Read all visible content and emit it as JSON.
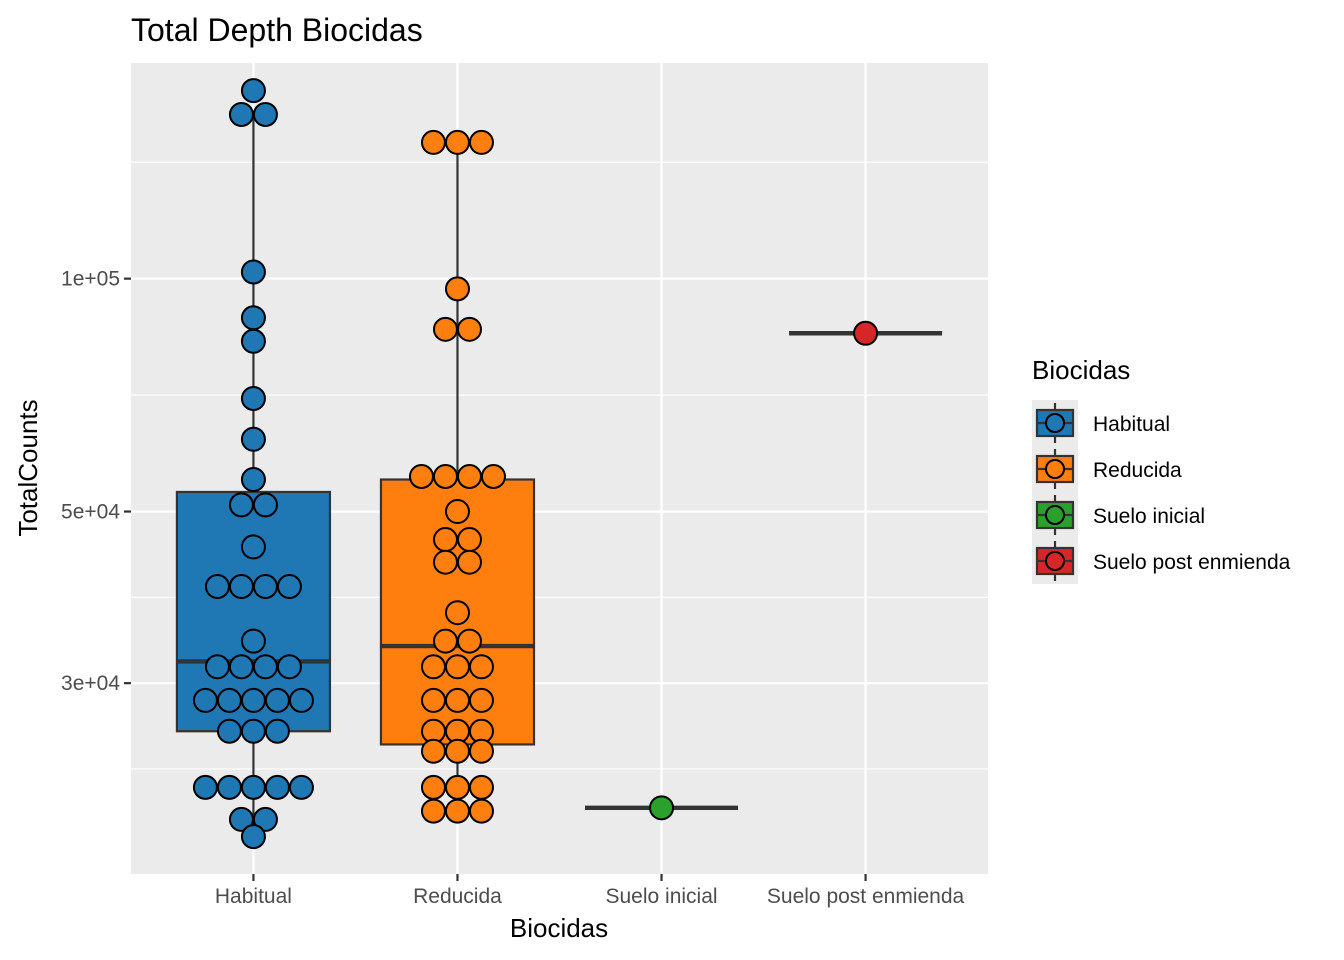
{
  "chart_data": {
    "type": "box",
    "title": "Total Depth Biocidas",
    "xlabel": "Biocidas",
    "ylabel": "TotalCounts",
    "y_scale": "log10",
    "ylim": [
      17000,
      190000
    ],
    "y_ticks": [
      30000,
      50000,
      100000
    ],
    "y_tick_labels": [
      "3e+04",
      "5e+04",
      "1e+05"
    ],
    "categories": [
      "Habitual",
      "Reducida",
      "Suelo inicial",
      "Suelo post enmienda"
    ],
    "legend": {
      "title": "Biocidas",
      "position": "right",
      "entries": [
        "Habitual",
        "Reducida",
        "Suelo inicial",
        "Suelo post enmienda"
      ]
    },
    "colors": [
      "#1f77b4",
      "#ff7f0e",
      "#2ca02c",
      "#d62728"
    ],
    "grid": true,
    "series": [
      {
        "category": "Habitual",
        "box": {
          "min": 19000,
          "q1": 26000,
          "median": 32000,
          "q3": 53000,
          "max": 163000
        },
        "points": [
          175000,
          163000,
          163000,
          102000,
          89000,
          83000,
          70000,
          62000,
          55000,
          51000,
          51000,
          45000,
          40000,
          40000,
          40000,
          40000,
          34000,
          31500,
          31500,
          31500,
          31500,
          28500,
          28500,
          28500,
          28500,
          28500,
          26000,
          26000,
          26000,
          22000,
          22000,
          22000,
          22000,
          22000,
          20000,
          20000,
          19000
        ]
      },
      {
        "category": "Reducida",
        "box": {
          "min": 20500,
          "q1": 25000,
          "median": 33500,
          "q3": 55000,
          "max": 150000
        },
        "points": [
          150000,
          150000,
          150000,
          97000,
          86000,
          86000,
          55500,
          55500,
          55500,
          55500,
          50000,
          46000,
          46000,
          43000,
          43000,
          37000,
          34000,
          34000,
          31500,
          31500,
          31500,
          28500,
          28500,
          28500,
          26000,
          26000,
          26000,
          24500,
          24500,
          24500,
          22000,
          22000,
          22000,
          20500,
          20500,
          20500
        ]
      },
      {
        "category": "Suelo inicial",
        "box": {
          "min": 20700,
          "q1": 20700,
          "median": 20700,
          "q3": 20700,
          "max": 20700
        },
        "points": [
          20700
        ]
      },
      {
        "category": "Suelo post enmienda",
        "box": {
          "min": 85000,
          "q1": 85000,
          "median": 85000,
          "q3": 85000,
          "max": 85000
        },
        "points": [
          85000
        ]
      }
    ]
  }
}
